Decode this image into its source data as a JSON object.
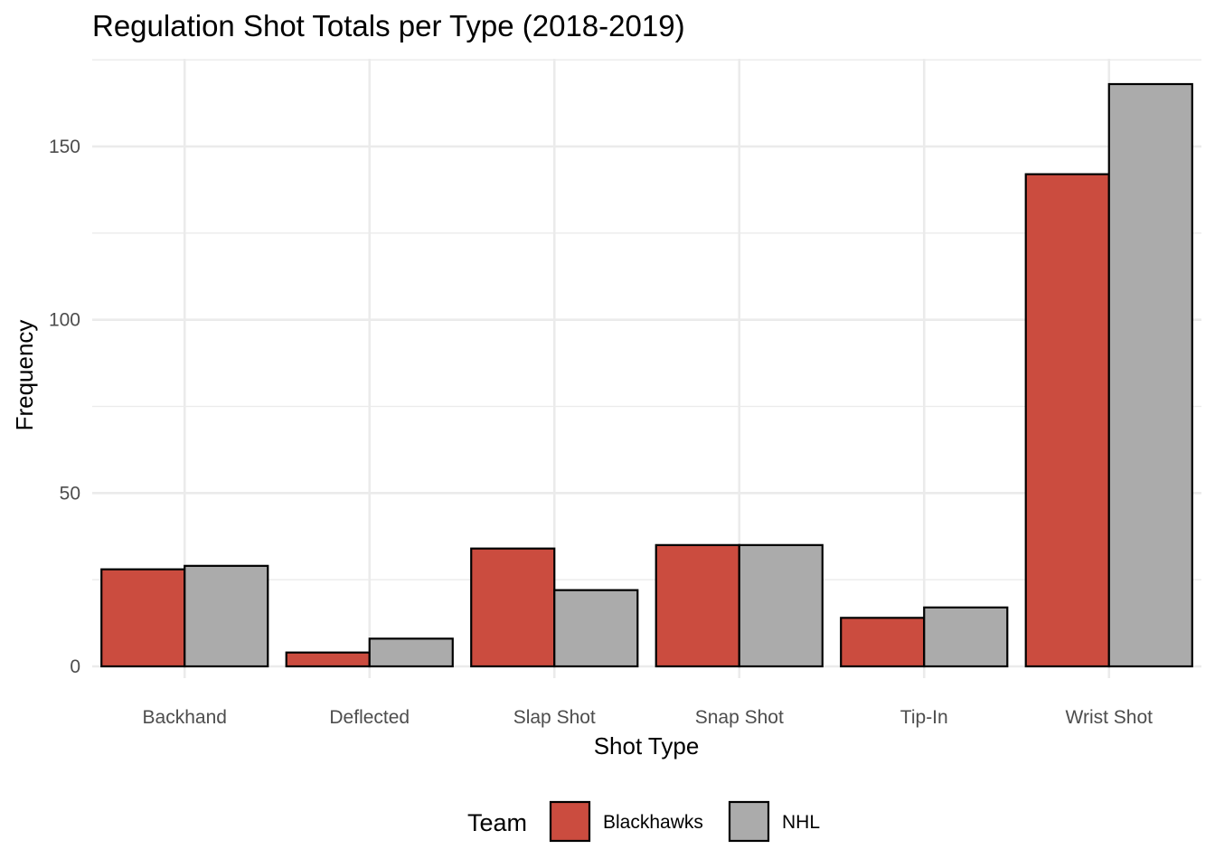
{
  "chart_data": {
    "type": "bar",
    "title": "Regulation Shot Totals per Type (2018-2019)",
    "xlabel": "Shot Type",
    "ylabel": "Frequency",
    "categories": [
      "Backhand",
      "Deflected",
      "Slap Shot",
      "Snap Shot",
      "Tip-In",
      "Wrist Shot"
    ],
    "series": [
      {
        "name": "Blackhawks",
        "color": "#CB4C3F",
        "values": [
          28,
          4,
          34,
          35,
          14,
          142
        ]
      },
      {
        "name": "NHL",
        "color": "#ABABAB",
        "values": [
          29,
          8,
          22,
          35,
          17,
          168
        ]
      }
    ],
    "ylim": [
      0,
      175
    ],
    "yticks": [
      0,
      50,
      100,
      150
    ],
    "ytick_labels": [
      "0",
      "50",
      "100",
      "150"
    ],
    "grid": true,
    "legend": {
      "title": "Team",
      "position": "bottom"
    }
  }
}
